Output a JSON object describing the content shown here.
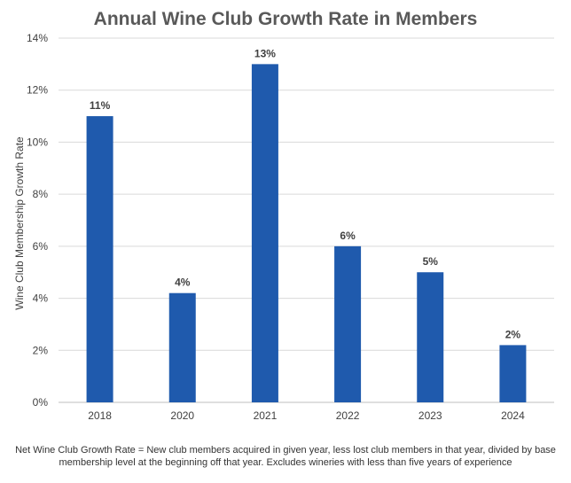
{
  "chart_data": {
    "type": "bar",
    "title": "Annual Wine Club Growth Rate in Members",
    "xlabel": "",
    "ylabel": "Wine Club Membership Growth Rate",
    "categories": [
      "2018",
      "2020",
      "2021",
      "2022",
      "2023",
      "2024"
    ],
    "values": [
      11,
      4.2,
      13,
      6,
      5,
      2.2
    ],
    "data_labels": [
      "11%",
      "4%",
      "13%",
      "6%",
      "5%",
      "2%"
    ],
    "ylim": [
      0,
      14
    ],
    "yticks": [
      0,
      2,
      4,
      6,
      8,
      10,
      12,
      14
    ],
    "ytick_labels": [
      "0%",
      "2%",
      "4%",
      "6%",
      "8%",
      "10%",
      "12%",
      "14%"
    ],
    "grid": true,
    "legend": "none",
    "bar_color": "#1f5aad",
    "footnote": "Net Wine Club Growth Rate = New club members acquired in given year, less lost club members in that year, divided by base membership level at the beginning off that year. Excludes wineries with less than five years of experience"
  }
}
